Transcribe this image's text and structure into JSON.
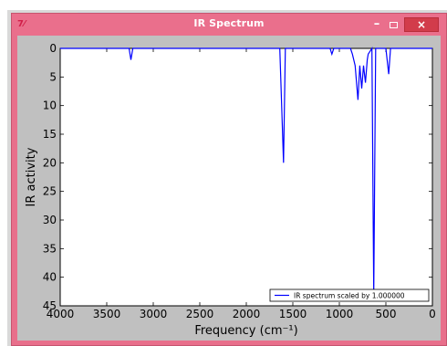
{
  "window": {
    "title": "IR Spectrum",
    "icon_name": "tk-feather-icon",
    "accent": "#ea6f8c",
    "close_color": "#d23c4b",
    "controls": {
      "minimize": "–",
      "close": "×"
    }
  },
  "chart_data": {
    "type": "line",
    "title": "",
    "xlabel": "Frequency (cm⁻¹)",
    "ylabel": "IR activity",
    "xlim": [
      4000,
      0
    ],
    "ylim": [
      0,
      45
    ],
    "y_inverted": true,
    "x_ticks": [
      4000,
      3500,
      3000,
      2500,
      2000,
      1500,
      1000,
      500,
      0
    ],
    "y_ticks": [
      0,
      5,
      10,
      15,
      20,
      25,
      30,
      35,
      40,
      45
    ],
    "legend": {
      "placement": "bottom-right",
      "entries": [
        "IR spectrum scaled by 1.000000"
      ]
    },
    "series": [
      {
        "name": "IR spectrum scaled by 1.000000",
        "color": "#0000ff",
        "points": [
          [
            4000,
            0
          ],
          [
            3260,
            0
          ],
          [
            3240,
            2
          ],
          [
            3220,
            0
          ],
          [
            1640,
            0
          ],
          [
            1600,
            20
          ],
          [
            1580,
            0
          ],
          [
            1100,
            0
          ],
          [
            1080,
            1
          ],
          [
            1060,
            0
          ],
          [
            880,
            0
          ],
          [
            860,
            1
          ],
          [
            830,
            3
          ],
          [
            800,
            9
          ],
          [
            780,
            3
          ],
          [
            760,
            7
          ],
          [
            740,
            3
          ],
          [
            720,
            6
          ],
          [
            700,
            2
          ],
          [
            690,
            1
          ],
          [
            650,
            0
          ],
          [
            630,
            43
          ],
          [
            610,
            0
          ],
          [
            500,
            0
          ],
          [
            470,
            4.5
          ],
          [
            450,
            0
          ],
          [
            0,
            0
          ]
        ]
      }
    ]
  }
}
